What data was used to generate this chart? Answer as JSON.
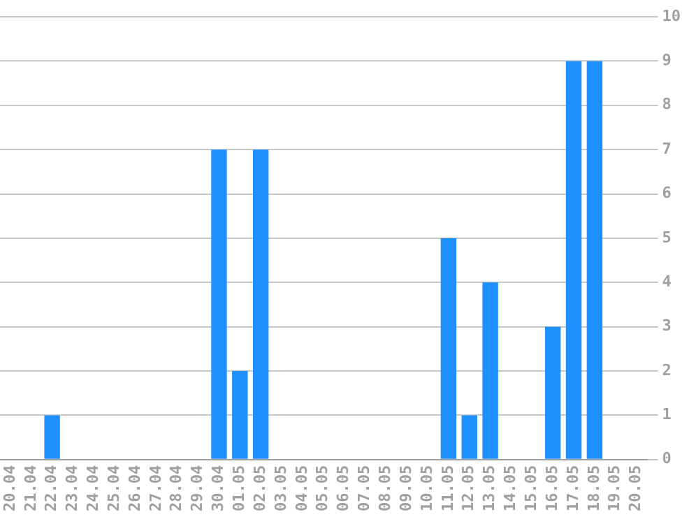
{
  "chart_data": {
    "type": "bar",
    "categories": [
      "20.04",
      "21.04",
      "22.04",
      "23.04",
      "24.04",
      "25.04",
      "26.04",
      "27.04",
      "28.04",
      "29.04",
      "30.04",
      "01.05",
      "02.05",
      "03.05",
      "04.05",
      "05.05",
      "06.05",
      "07.05",
      "08.05",
      "09.05",
      "10.05",
      "11.05",
      "12.05",
      "13.05",
      "14.05",
      "15.05",
      "16.05",
      "17.05",
      "18.05",
      "19.05",
      "20.05"
    ],
    "values": [
      0,
      0,
      1,
      0,
      0,
      0,
      0,
      0,
      0,
      0,
      7,
      2,
      7,
      0,
      0,
      0,
      0,
      0,
      0,
      0,
      0,
      5,
      1,
      4,
      0,
      0,
      3,
      9,
      9,
      0,
      0
    ],
    "color": "#1e90ff",
    "ylim": [
      0,
      10
    ],
    "yticks": [
      0,
      1,
      2,
      3,
      4,
      5,
      6,
      7,
      8,
      9,
      10
    ],
    "grid": "y"
  }
}
